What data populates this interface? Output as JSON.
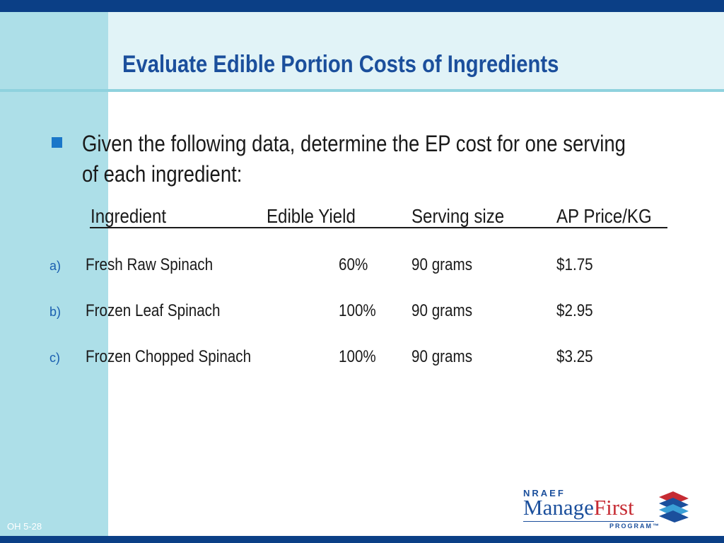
{
  "slide": {
    "title": "Evaluate Edible Portion Costs of Ingredients",
    "intro": "Given the following data, determine the EP cost for one serving of each ingredient:",
    "footer": "OH  5-28"
  },
  "table": {
    "headers": [
      "Ingredient",
      "Edible Yield",
      "Serving size",
      "AP Price/KG"
    ],
    "rows": [
      {
        "marker": "a)",
        "ingredient": "Fresh Raw Spinach",
        "yield": "60%",
        "serving": "90 grams",
        "price": "$1.75"
      },
      {
        "marker": "b)",
        "ingredient": "Frozen  Leaf Spinach",
        "yield": "100%",
        "serving": "90 grams",
        "price": "$2.95"
      },
      {
        "marker": "c)",
        "ingredient": "Frozen Chopped Spinach",
        "yield": "100%",
        "serving": "90 grams",
        "price": "$3.25"
      }
    ]
  },
  "logo": {
    "org": "NRAEF",
    "name_part1": "Manage",
    "name_part2": "First",
    "tagline": "PROGRAM™"
  },
  "colors": {
    "navy": "#0b3f86",
    "panel": "#addfe8",
    "title": "#1b4f9c",
    "accent_red": "#c62b33"
  }
}
